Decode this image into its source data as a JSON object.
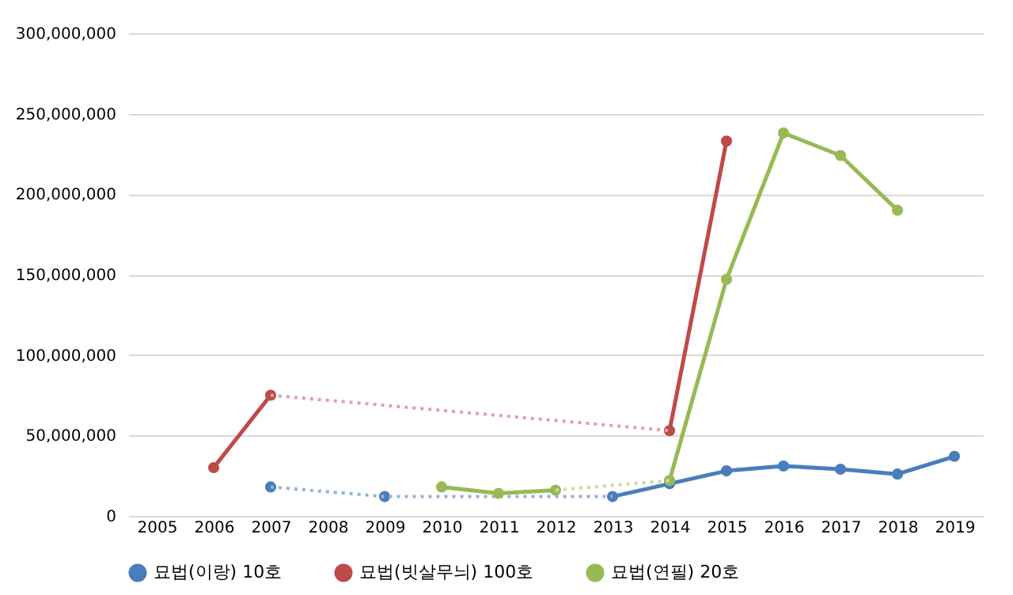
{
  "chart_data": {
    "type": "line",
    "categories": [
      "2005",
      "2006",
      "2007",
      "2008",
      "2009",
      "2010",
      "2011",
      "2012",
      "2013",
      "2014",
      "2015",
      "2016",
      "2017",
      "2018",
      "2019"
    ],
    "series": [
      {
        "name": "묘법(이랑) 10호",
        "color": "#4a7ebb",
        "values": [
          null,
          null,
          18000000,
          null,
          12000000,
          null,
          null,
          null,
          12000000,
          20000000,
          28000000,
          31000000,
          29000000,
          26000000,
          37000000
        ]
      },
      {
        "color": "#95b3d7",
        "line_style": "dotted",
        "marker": "none",
        "values": [
          null,
          null,
          18000000,
          null,
          12000000,
          null,
          null,
          null,
          12000000,
          null,
          null,
          null,
          null,
          null,
          null
        ]
      },
      {
        "name": "묘법(빗살무늬) 100호",
        "color": "#be4b48",
        "values": [
          null,
          30000000,
          75000000,
          null,
          null,
          null,
          null,
          null,
          null,
          53000000,
          233000000,
          null,
          null,
          null,
          null
        ]
      },
      {
        "color": "#e6a09e",
        "line_style": "dotted",
        "marker": "none",
        "values": [
          null,
          null,
          75000000,
          null,
          null,
          null,
          null,
          null,
          null,
          53000000,
          null,
          null,
          null,
          null,
          null
        ]
      },
      {
        "name": "묘법(연필) 20호",
        "color": "#98b954",
        "values": [
          null,
          null,
          null,
          null,
          null,
          18000000,
          14000000,
          16000000,
          null,
          22000000,
          147000000,
          238000000,
          224000000,
          190000000,
          null
        ]
      },
      {
        "color": "#c8dca4",
        "line_style": "dotted",
        "marker": "none",
        "values": [
          null,
          null,
          null,
          null,
          null,
          null,
          null,
          16000000,
          null,
          22000000,
          null,
          null,
          null,
          null,
          null
        ]
      }
    ],
    "ylim": [
      0,
      300000000
    ],
    "yticks": [
      0,
      {
        "value": 50000000,
        "label": "50,000,000"
      },
      {
        "value": 100000000,
        "label": "100,000,000"
      },
      {
        "value": 150000000,
        "label": "150,000,000"
      },
      {
        "value": 200000000,
        "label": "200,000,000"
      },
      {
        "value": 250000000,
        "label": "250,000,000"
      },
      {
        "value": 300000000,
        "label": "300,000,000"
      }
    ],
    "grid": "y",
    "legend": "bottom",
    "marker": "circle",
    "line_style": "solid"
  }
}
